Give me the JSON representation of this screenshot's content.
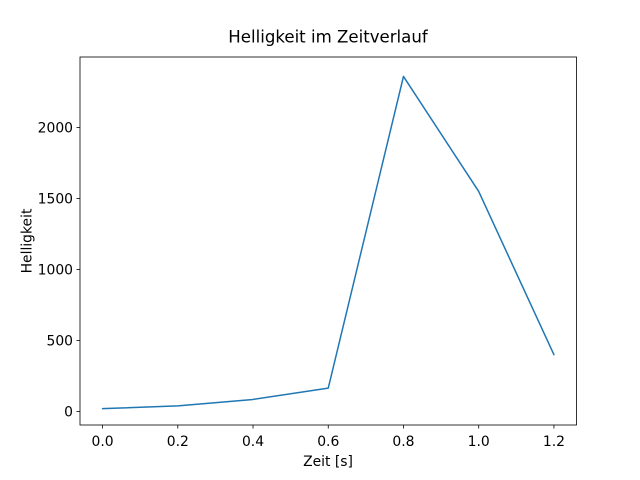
{
  "chart_data": {
    "type": "line",
    "title": "Helligkeit im Zeitverlauf",
    "xlabel": "Zeit [s]",
    "ylabel": "Helligkeit",
    "x": [
      0.0,
      0.2,
      0.4,
      0.6,
      0.8,
      1.0,
      1.2
    ],
    "y": [
      20,
      40,
      85,
      165,
      2360,
      1550,
      400
    ],
    "xlim": [
      -0.06,
      1.26
    ],
    "ylim": [
      -95,
      2497
    ],
    "xticks": [
      0.0,
      0.2,
      0.4,
      0.6,
      0.8,
      1.0,
      1.2
    ],
    "xtick_labels": [
      "0.0",
      "0.2",
      "0.4",
      "0.6",
      "0.8",
      "1.0",
      "1.2"
    ],
    "yticks": [
      0,
      500,
      1000,
      1500,
      2000
    ],
    "ytick_labels": [
      "0",
      "500",
      "1000",
      "1500",
      "2000"
    ],
    "line_color": "#1f77b4",
    "spine_color": "#000000",
    "background_color": "#ffffff",
    "grid": false,
    "legend": null
  }
}
